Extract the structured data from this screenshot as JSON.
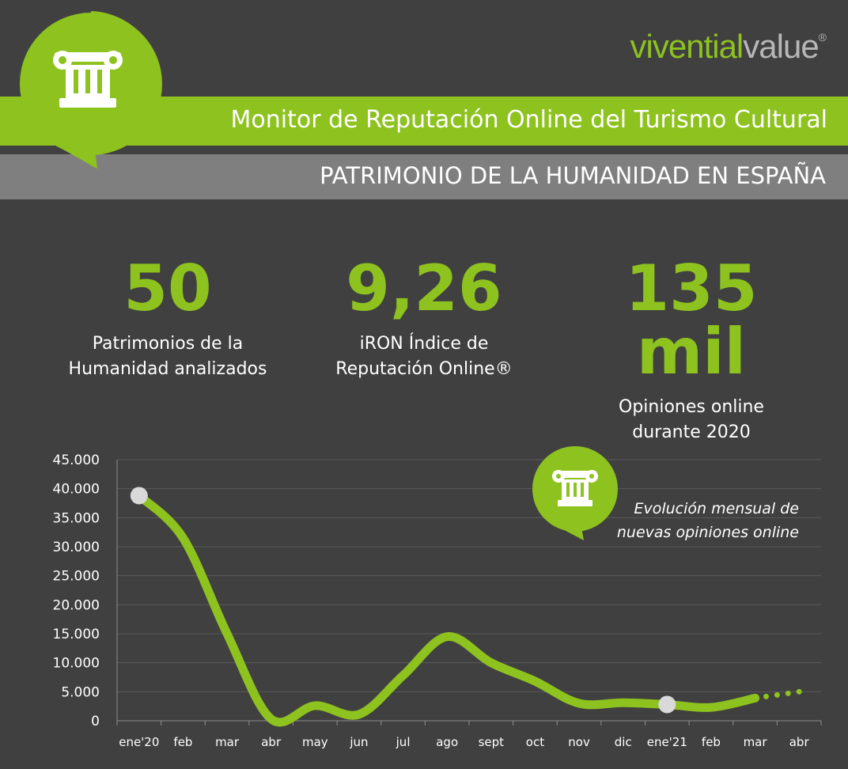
{
  "brand": {
    "part1": "vivential",
    "part2": "value",
    "reg": "®"
  },
  "header": {
    "title": "Monitor de Reputación Online del Turismo Cultural",
    "subtitle": "PATRIMONIO DE LA HUMANIDAD EN ESPAÑA"
  },
  "stats": [
    {
      "value": "50",
      "label_line1": "Patrimonios de la",
      "label_line2": "Humanidad analizados"
    },
    {
      "value": "9,26",
      "label_line1": "iRON Índice de",
      "label_line2": "Reputación Online®"
    },
    {
      "value": "135 mil",
      "label_line1": "Opiniones online",
      "label_line2": "durante 2020"
    }
  ],
  "note": {
    "line1": "Evolución mensual de",
    "line2": "nuevas opiniones online"
  },
  "icons": {
    "main": "column-icon",
    "small": "column-icon"
  },
  "colors": {
    "accent": "#8dc21f",
    "background": "#404040",
    "band_gray": "#7f7f7f",
    "marker": "#d9d9d9"
  },
  "chart_data": {
    "type": "line",
    "categories": [
      "ene'20",
      "feb",
      "mar",
      "abr",
      "may",
      "jun",
      "jul",
      "ago",
      "sept",
      "oct",
      "nov",
      "dic",
      "ene'21",
      "feb",
      "mar",
      "abr"
    ],
    "values": [
      38800,
      31500,
      15000,
      300,
      2600,
      1100,
      7800,
      14500,
      10000,
      6800,
      3000,
      3100,
      2800,
      2300,
      3900,
      null
    ],
    "projection": [
      [
        14,
        3900
      ],
      [
        15,
        5000
      ]
    ],
    "highlighted_points": [
      0,
      12
    ],
    "yticks": [
      "45.000",
      "40.000",
      "35.000",
      "30.000",
      "25.000",
      "20.000",
      "15.000",
      "10.000",
      "5.000",
      "0"
    ],
    "ylim": [
      0,
      45000
    ],
    "grid": true,
    "title": "",
    "xlabel": "",
    "ylabel": ""
  }
}
